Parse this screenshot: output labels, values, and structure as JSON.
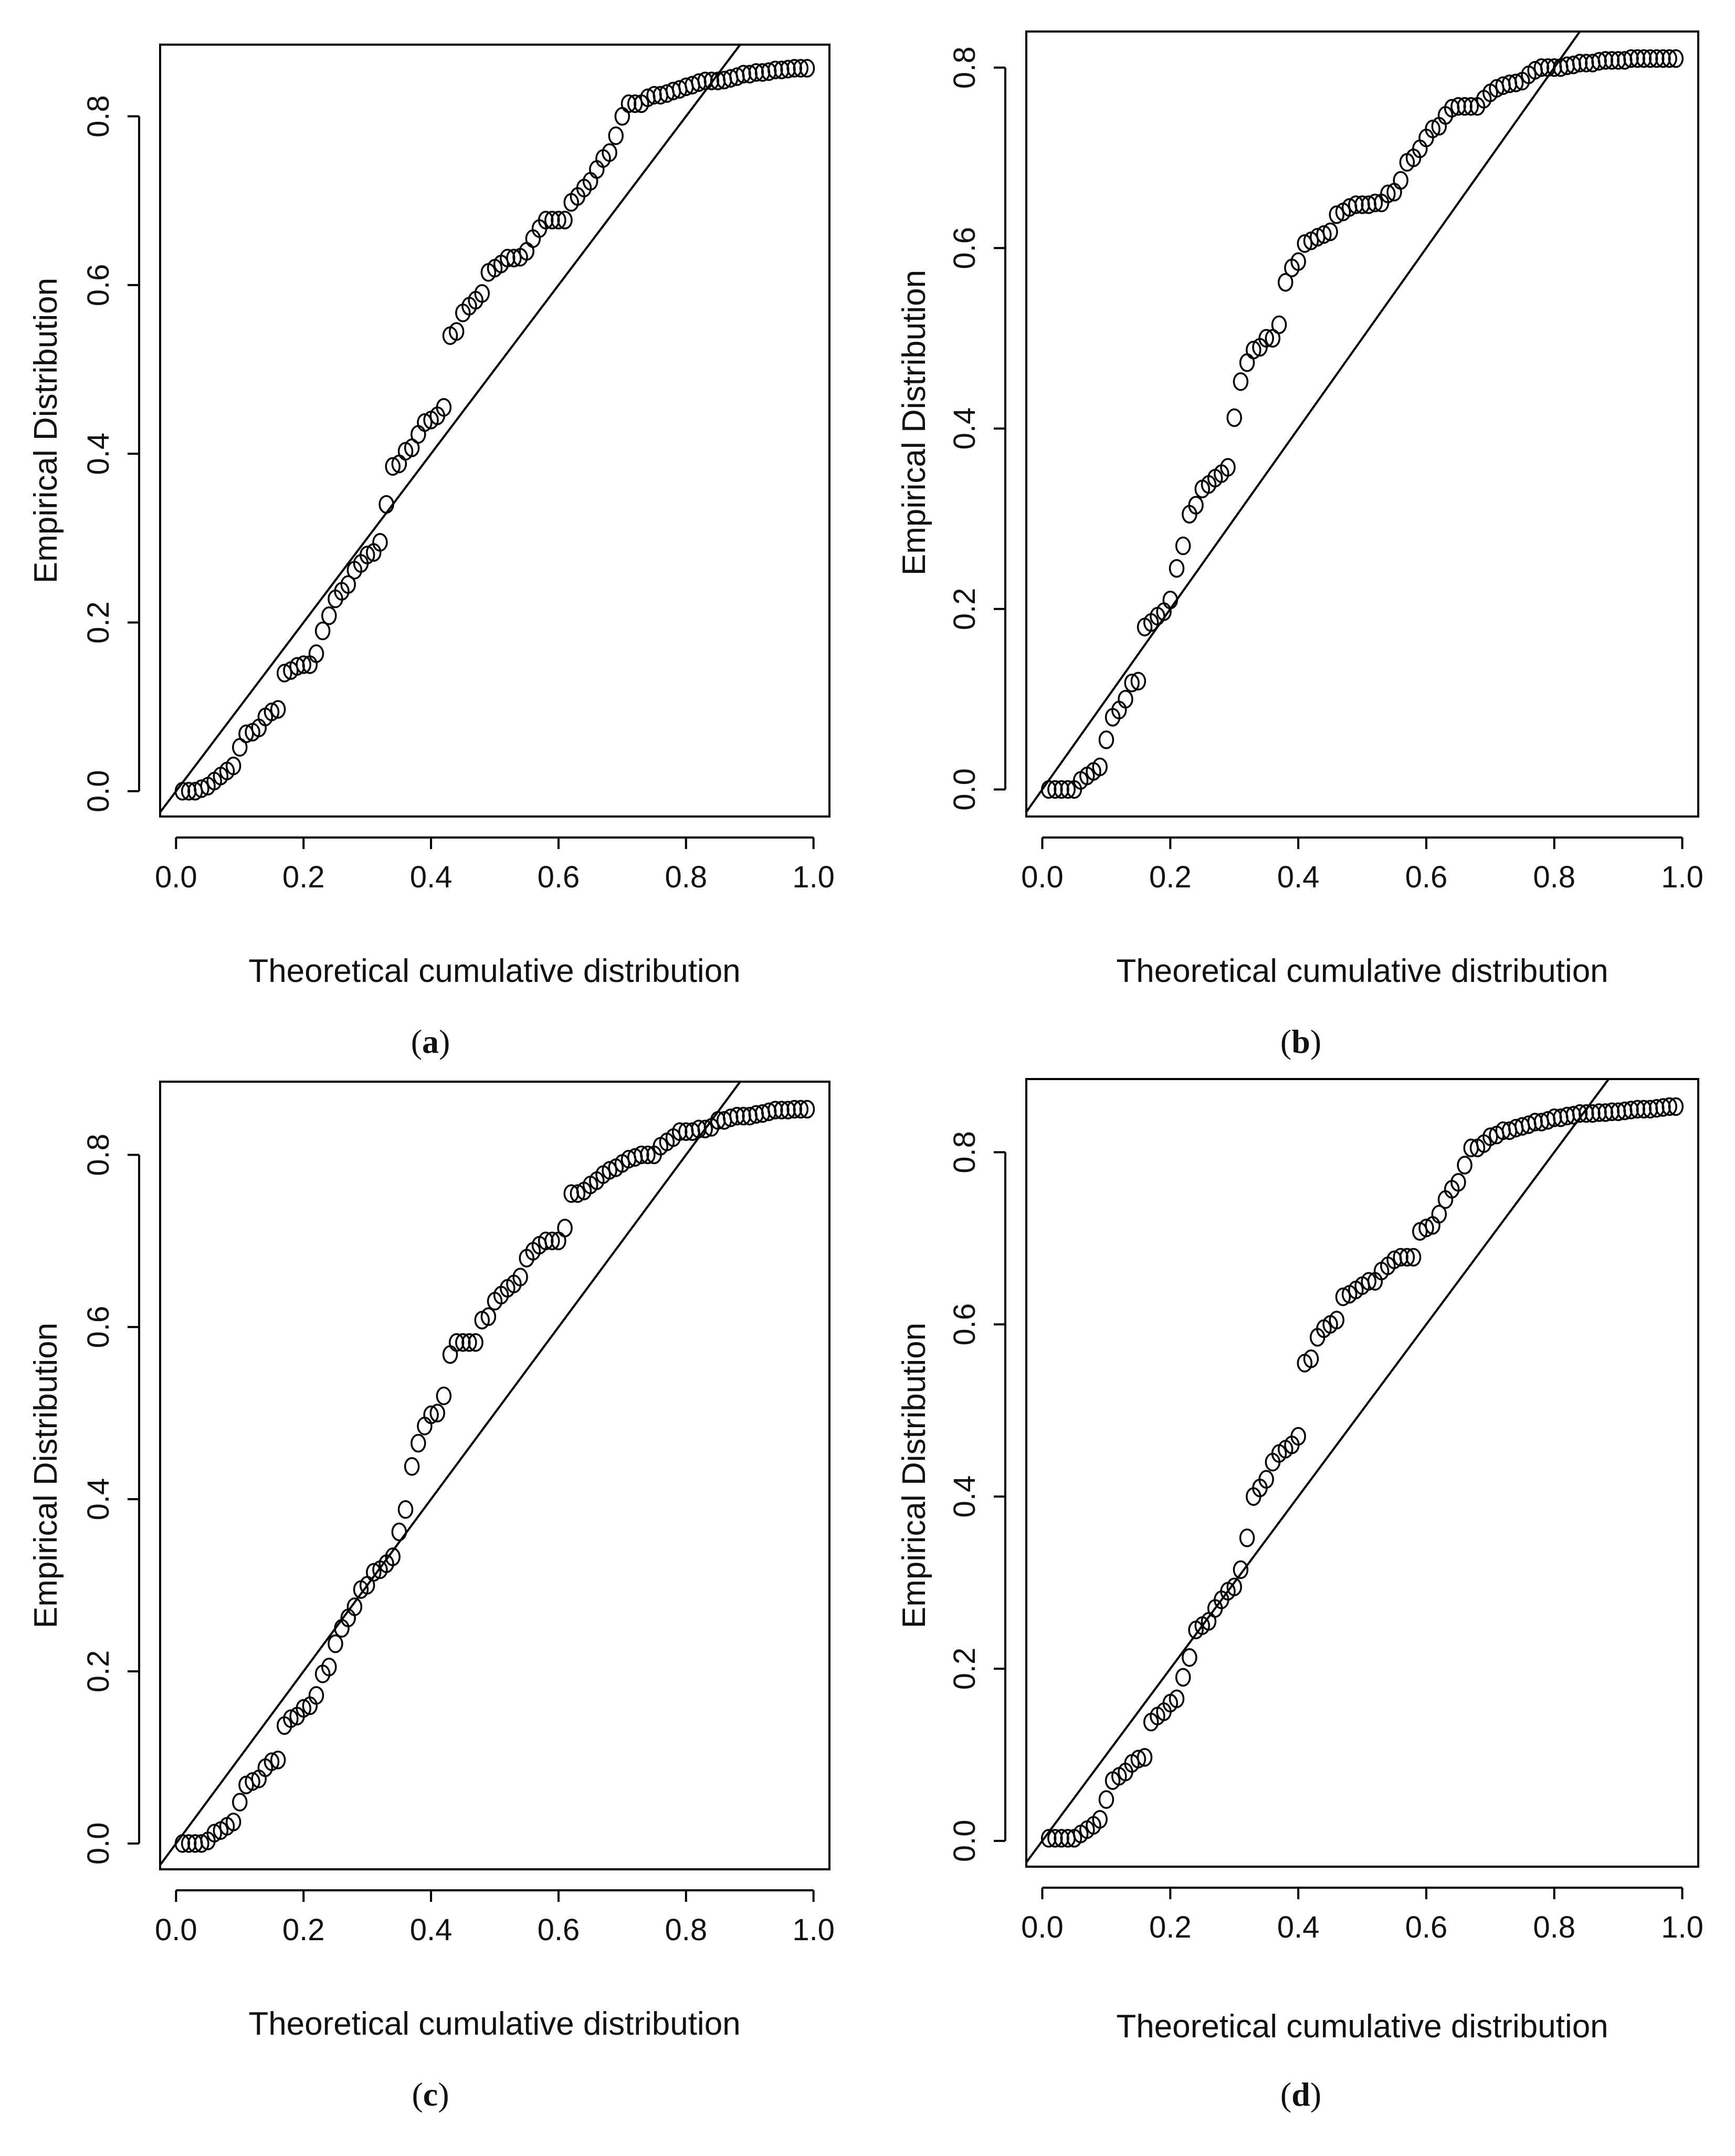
{
  "figure": {
    "panel_count": 4
  },
  "chart_data": [
    {
      "id": "a",
      "type": "scatter",
      "panel_label": "a",
      "xlabel": "Theoretical cumulative distribution",
      "ylabel": "Empirical Distribution",
      "xlim": [
        -0.025,
        1.025
      ],
      "ylim": [
        -0.03,
        0.885
      ],
      "xticks": [
        0.0,
        0.2,
        0.4,
        0.6,
        0.8,
        1.0
      ],
      "yticks": [
        0.0,
        0.2,
        0.4,
        0.6,
        0.8
      ],
      "xtick_labels": [
        "0.0",
        "0.2",
        "0.4",
        "0.6",
        "0.8",
        "1.0"
      ],
      "ytick_labels": [
        "0.0",
        "0.2",
        "0.4",
        "0.6",
        "0.8"
      ],
      "reference_line": {
        "x": [
          -0.025,
          0.885
        ],
        "y": [
          -0.025,
          0.885
        ]
      },
      "series": [
        {
          "name": "empirical",
          "x": [
            0.01,
            0.02,
            0.03,
            0.04,
            0.05,
            0.06,
            0.07,
            0.08,
            0.09,
            0.1,
            0.11,
            0.12,
            0.13,
            0.14,
            0.15,
            0.16,
            0.17,
            0.18,
            0.19,
            0.2,
            0.21,
            0.22,
            0.23,
            0.24,
            0.25,
            0.26,
            0.27,
            0.28,
            0.29,
            0.3,
            0.31,
            0.32,
            0.33,
            0.34,
            0.35,
            0.36,
            0.37,
            0.38,
            0.39,
            0.4,
            0.41,
            0.42,
            0.43,
            0.44,
            0.45,
            0.46,
            0.47,
            0.48,
            0.49,
            0.5,
            0.51,
            0.52,
            0.53,
            0.54,
            0.55,
            0.56,
            0.57,
            0.58,
            0.59,
            0.6,
            0.61,
            0.62,
            0.63,
            0.64,
            0.65,
            0.66,
            0.67,
            0.68,
            0.69,
            0.7,
            0.71,
            0.72,
            0.73,
            0.74,
            0.75,
            0.76,
            0.77,
            0.78,
            0.79,
            0.8,
            0.81,
            0.82,
            0.83,
            0.84,
            0.85,
            0.86,
            0.87,
            0.88,
            0.89,
            0.9,
            0.91,
            0.92,
            0.93,
            0.94,
            0.95,
            0.96,
            0.97,
            0.98,
            0.99
          ],
          "y": [
            0.0,
            0.0,
            0.0,
            0.003,
            0.006,
            0.012,
            0.018,
            0.024,
            0.03,
            0.052,
            0.068,
            0.07,
            0.075,
            0.088,
            0.094,
            0.097,
            0.14,
            0.143,
            0.148,
            0.15,
            0.15,
            0.163,
            0.19,
            0.208,
            0.228,
            0.237,
            0.245,
            0.262,
            0.27,
            0.28,
            0.283,
            0.295,
            0.34,
            0.385,
            0.388,
            0.403,
            0.407,
            0.423,
            0.437,
            0.44,
            0.445,
            0.455,
            0.54,
            0.545,
            0.567,
            0.575,
            0.582,
            0.59,
            0.615,
            0.62,
            0.625,
            0.632,
            0.632,
            0.633,
            0.64,
            0.655,
            0.667,
            0.677,
            0.677,
            0.677,
            0.677,
            0.698,
            0.705,
            0.715,
            0.723,
            0.737,
            0.75,
            0.757,
            0.777,
            0.8,
            0.815,
            0.815,
            0.815,
            0.822,
            0.825,
            0.825,
            0.827,
            0.83,
            0.832,
            0.835,
            0.837,
            0.84,
            0.842,
            0.842,
            0.842,
            0.843,
            0.845,
            0.847,
            0.85,
            0.85,
            0.852,
            0.852,
            0.853,
            0.855,
            0.855,
            0.856,
            0.857,
            0.857,
            0.857
          ]
        }
      ]
    },
    {
      "id": "b",
      "type": "scatter",
      "panel_label": "b",
      "xlabel": "Theoretical cumulative distribution",
      "ylabel": "Empirical Distribution",
      "xlim": [
        -0.025,
        1.025
      ],
      "ylim": [
        -0.03,
        0.84
      ],
      "xticks": [
        0.0,
        0.2,
        0.4,
        0.6,
        0.8,
        1.0
      ],
      "yticks": [
        0.0,
        0.2,
        0.4,
        0.6,
        0.8
      ],
      "xtick_labels": [
        "0.0",
        "0.2",
        "0.4",
        "0.6",
        "0.8",
        "1.0"
      ],
      "ytick_labels": [
        "0.0",
        "0.2",
        "0.4",
        "0.6",
        "0.8"
      ],
      "reference_line": {
        "x": [
          -0.025,
          0.84
        ],
        "y": [
          -0.025,
          0.84
        ]
      },
      "series": [
        {
          "name": "empirical",
          "x": [
            0.01,
            0.02,
            0.03,
            0.04,
            0.05,
            0.06,
            0.07,
            0.08,
            0.09,
            0.1,
            0.11,
            0.12,
            0.13,
            0.14,
            0.15,
            0.16,
            0.17,
            0.18,
            0.19,
            0.2,
            0.21,
            0.22,
            0.23,
            0.24,
            0.25,
            0.26,
            0.27,
            0.28,
            0.29,
            0.3,
            0.31,
            0.32,
            0.33,
            0.34,
            0.35,
            0.36,
            0.37,
            0.38,
            0.39,
            0.4,
            0.41,
            0.42,
            0.43,
            0.44,
            0.45,
            0.46,
            0.47,
            0.48,
            0.49,
            0.5,
            0.51,
            0.52,
            0.53,
            0.54,
            0.55,
            0.56,
            0.57,
            0.58,
            0.59,
            0.6,
            0.61,
            0.62,
            0.63,
            0.64,
            0.65,
            0.66,
            0.67,
            0.68,
            0.69,
            0.7,
            0.71,
            0.72,
            0.73,
            0.74,
            0.75,
            0.76,
            0.77,
            0.78,
            0.79,
            0.8,
            0.81,
            0.82,
            0.83,
            0.84,
            0.85,
            0.86,
            0.87,
            0.88,
            0.89,
            0.9,
            0.91,
            0.92,
            0.93,
            0.94,
            0.95,
            0.96,
            0.97,
            0.98,
            0.99
          ],
          "y": [
            0.0,
            0.0,
            0.0,
            0.0,
            0.0,
            0.01,
            0.015,
            0.02,
            0.025,
            0.055,
            0.08,
            0.088,
            0.1,
            0.118,
            0.12,
            0.18,
            0.185,
            0.192,
            0.197,
            0.21,
            0.245,
            0.27,
            0.305,
            0.315,
            0.333,
            0.338,
            0.345,
            0.35,
            0.357,
            0.412,
            0.452,
            0.473,
            0.487,
            0.49,
            0.5,
            0.5,
            0.515,
            0.562,
            0.578,
            0.585,
            0.605,
            0.608,
            0.612,
            0.615,
            0.618,
            0.637,
            0.64,
            0.645,
            0.648,
            0.648,
            0.648,
            0.65,
            0.65,
            0.66,
            0.662,
            0.675,
            0.695,
            0.7,
            0.71,
            0.722,
            0.732,
            0.735,
            0.747,
            0.755,
            0.757,
            0.757,
            0.757,
            0.757,
            0.765,
            0.772,
            0.777,
            0.78,
            0.782,
            0.783,
            0.785,
            0.792,
            0.797,
            0.8,
            0.8,
            0.8,
            0.8,
            0.802,
            0.803,
            0.805,
            0.805,
            0.805,
            0.807,
            0.808,
            0.808,
            0.808,
            0.808,
            0.81,
            0.81,
            0.81,
            0.81,
            0.81,
            0.81,
            0.81,
            0.81
          ]
        }
      ]
    },
    {
      "id": "c",
      "type": "scatter",
      "panel_label": "c",
      "xlabel": "Theoretical cumulative distribution",
      "ylabel": "Empirical Distribution",
      "xlim": [
        -0.025,
        1.025
      ],
      "ylim": [
        -0.03,
        0.885
      ],
      "xticks": [
        0.0,
        0.2,
        0.4,
        0.6,
        0.8,
        1.0
      ],
      "yticks": [
        0.0,
        0.2,
        0.4,
        0.6,
        0.8
      ],
      "xtick_labels": [
        "0.0",
        "0.2",
        "0.4",
        "0.6",
        "0.8",
        "1.0"
      ],
      "ytick_labels": [
        "0.0",
        "0.2",
        "0.4",
        "0.6",
        "0.8"
      ],
      "reference_line": {
        "x": [
          -0.025,
          0.885
        ],
        "y": [
          -0.025,
          0.885
        ]
      },
      "series": [
        {
          "name": "empirical",
          "x": [
            0.01,
            0.02,
            0.03,
            0.04,
            0.05,
            0.06,
            0.07,
            0.08,
            0.09,
            0.1,
            0.11,
            0.12,
            0.13,
            0.14,
            0.15,
            0.16,
            0.17,
            0.18,
            0.19,
            0.2,
            0.21,
            0.22,
            0.23,
            0.24,
            0.25,
            0.26,
            0.27,
            0.28,
            0.29,
            0.3,
            0.31,
            0.32,
            0.33,
            0.34,
            0.35,
            0.36,
            0.37,
            0.38,
            0.39,
            0.4,
            0.41,
            0.42,
            0.43,
            0.44,
            0.45,
            0.46,
            0.47,
            0.48,
            0.49,
            0.5,
            0.51,
            0.52,
            0.53,
            0.54,
            0.55,
            0.56,
            0.57,
            0.58,
            0.59,
            0.6,
            0.61,
            0.62,
            0.63,
            0.64,
            0.65,
            0.66,
            0.67,
            0.68,
            0.69,
            0.7,
            0.71,
            0.72,
            0.73,
            0.74,
            0.75,
            0.76,
            0.77,
            0.78,
            0.79,
            0.8,
            0.81,
            0.82,
            0.83,
            0.84,
            0.85,
            0.86,
            0.87,
            0.88,
            0.89,
            0.9,
            0.91,
            0.92,
            0.93,
            0.94,
            0.95,
            0.96,
            0.97,
            0.98,
            0.99
          ],
          "y": [
            0.0,
            0.0,
            0.0,
            0.0,
            0.003,
            0.012,
            0.015,
            0.02,
            0.025,
            0.048,
            0.068,
            0.072,
            0.075,
            0.088,
            0.095,
            0.097,
            0.137,
            0.145,
            0.148,
            0.157,
            0.16,
            0.172,
            0.197,
            0.205,
            0.232,
            0.25,
            0.262,
            0.275,
            0.295,
            0.3,
            0.315,
            0.318,
            0.325,
            0.333,
            0.362,
            0.388,
            0.438,
            0.465,
            0.485,
            0.498,
            0.5,
            0.52,
            0.568,
            0.582,
            0.582,
            0.582,
            0.582,
            0.608,
            0.612,
            0.63,
            0.637,
            0.645,
            0.65,
            0.658,
            0.68,
            0.688,
            0.695,
            0.7,
            0.7,
            0.7,
            0.715,
            0.755,
            0.755,
            0.758,
            0.765,
            0.77,
            0.777,
            0.782,
            0.785,
            0.79,
            0.795,
            0.797,
            0.8,
            0.8,
            0.8,
            0.81,
            0.815,
            0.82,
            0.827,
            0.827,
            0.827,
            0.83,
            0.83,
            0.832,
            0.84,
            0.84,
            0.843,
            0.845,
            0.845,
            0.845,
            0.847,
            0.848,
            0.85,
            0.852,
            0.852,
            0.852,
            0.853,
            0.853,
            0.853
          ]
        }
      ]
    },
    {
      "id": "d",
      "type": "scatter",
      "panel_label": "d",
      "xlabel": "Theoretical cumulative distribution",
      "ylabel": "Empirical Distribution",
      "xlim": [
        -0.025,
        1.025
      ],
      "ylim": [
        -0.03,
        0.885
      ],
      "xticks": [
        0.0,
        0.2,
        0.4,
        0.6,
        0.8,
        1.0
      ],
      "yticks": [
        0.0,
        0.2,
        0.4,
        0.6,
        0.8
      ],
      "xtick_labels": [
        "0.0",
        "0.2",
        "0.4",
        "0.6",
        "0.8",
        "1.0"
      ],
      "ytick_labels": [
        "0.0",
        "0.2",
        "0.4",
        "0.6",
        "0.8"
      ],
      "reference_line": {
        "x": [
          -0.025,
          0.885
        ],
        "y": [
          -0.025,
          0.885
        ]
      },
      "series": [
        {
          "name": "empirical",
          "x": [
            0.01,
            0.02,
            0.03,
            0.04,
            0.05,
            0.06,
            0.07,
            0.08,
            0.09,
            0.1,
            0.11,
            0.12,
            0.13,
            0.14,
            0.15,
            0.16,
            0.17,
            0.18,
            0.19,
            0.2,
            0.21,
            0.22,
            0.23,
            0.24,
            0.25,
            0.26,
            0.27,
            0.28,
            0.29,
            0.3,
            0.31,
            0.32,
            0.33,
            0.34,
            0.35,
            0.36,
            0.37,
            0.38,
            0.39,
            0.4,
            0.41,
            0.42,
            0.43,
            0.44,
            0.45,
            0.46,
            0.47,
            0.48,
            0.49,
            0.5,
            0.51,
            0.52,
            0.53,
            0.54,
            0.55,
            0.56,
            0.57,
            0.58,
            0.59,
            0.6,
            0.61,
            0.62,
            0.63,
            0.64,
            0.65,
            0.66,
            0.67,
            0.68,
            0.69,
            0.7,
            0.71,
            0.72,
            0.73,
            0.74,
            0.75,
            0.76,
            0.77,
            0.78,
            0.79,
            0.8,
            0.81,
            0.82,
            0.83,
            0.84,
            0.85,
            0.86,
            0.87,
            0.88,
            0.89,
            0.9,
            0.91,
            0.92,
            0.93,
            0.94,
            0.95,
            0.96,
            0.97,
            0.98,
            0.99
          ],
          "y": [
            0.003,
            0.003,
            0.003,
            0.003,
            0.003,
            0.008,
            0.013,
            0.018,
            0.025,
            0.048,
            0.07,
            0.075,
            0.08,
            0.09,
            0.095,
            0.097,
            0.138,
            0.145,
            0.15,
            0.16,
            0.165,
            0.19,
            0.213,
            0.245,
            0.25,
            0.255,
            0.27,
            0.28,
            0.29,
            0.295,
            0.315,
            0.352,
            0.4,
            0.41,
            0.42,
            0.44,
            0.45,
            0.455,
            0.46,
            0.47,
            0.555,
            0.56,
            0.585,
            0.595,
            0.6,
            0.605,
            0.632,
            0.635,
            0.64,
            0.645,
            0.65,
            0.65,
            0.662,
            0.668,
            0.675,
            0.678,
            0.678,
            0.678,
            0.708,
            0.712,
            0.715,
            0.728,
            0.745,
            0.757,
            0.765,
            0.785,
            0.805,
            0.805,
            0.81,
            0.818,
            0.82,
            0.825,
            0.825,
            0.828,
            0.83,
            0.832,
            0.835,
            0.835,
            0.837,
            0.84,
            0.84,
            0.842,
            0.843,
            0.845,
            0.845,
            0.845,
            0.846,
            0.846,
            0.847,
            0.847,
            0.848,
            0.849,
            0.85,
            0.85,
            0.85,
            0.851,
            0.852,
            0.853,
            0.853
          ]
        }
      ]
    }
  ]
}
